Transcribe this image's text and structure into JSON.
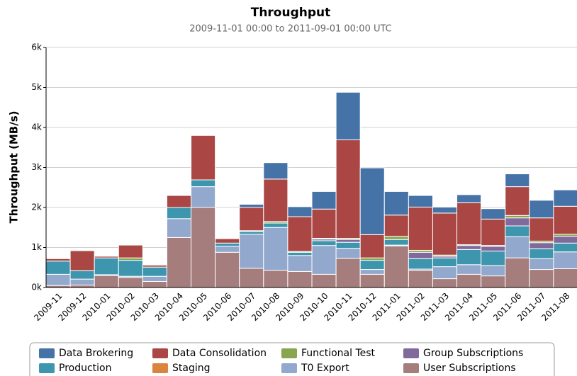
{
  "chart_data": {
    "type": "bar",
    "stacked": true,
    "title": "Throughput",
    "subtitle": "2009-11-01 00:00 to 2011-09-01 00:00 UTC",
    "y_label": "Throughput (MB/s)",
    "categories": [
      "2009-11",
      "2009-12",
      "2010-01",
      "2010-02",
      "2010-03",
      "2010-04",
      "2010-05",
      "2010-06",
      "2010-07",
      "2010-08",
      "2010-09",
      "2010-10",
      "2010-11",
      "2010-12",
      "2011-01",
      "2011-02",
      "2011-03",
      "2011-04",
      "2011-05",
      "2011-06",
      "2011-07",
      "2011-08"
    ],
    "series": [
      {
        "name": "Data Brokering",
        "color": "#4572a7",
        "values": [
          0,
          0,
          0,
          0,
          0,
          0,
          0,
          0,
          80,
          410,
          250,
          440,
          1190,
          1670,
          590,
          290,
          150,
          200,
          260,
          320,
          440,
          410
        ]
      },
      {
        "name": "Data Consolidation",
        "color": "#aa4643",
        "values": [
          60,
          500,
          40,
          320,
          50,
          300,
          1110,
          110,
          580,
          1060,
          870,
          730,
          2460,
          580,
          530,
          1080,
          1050,
          1050,
          660,
          720,
          580,
          700
        ]
      },
      {
        "name": "Functional Test",
        "color": "#89a54e",
        "values": [
          0,
          0,
          0,
          60,
          0,
          0,
          0,
          0,
          20,
          40,
          20,
          20,
          30,
          60,
          80,
          50,
          30,
          20,
          20,
          60,
          40,
          50
        ]
      },
      {
        "name": "Group Subscriptions",
        "color": "#80699b",
        "values": [
          0,
          0,
          0,
          0,
          0,
          0,
          0,
          0,
          0,
          0,
          0,
          40,
          70,
          0,
          0,
          160,
          40,
          100,
          120,
          200,
          150,
          170
        ]
      },
      {
        "name": "Production",
        "color": "#3d96ae",
        "values": [
          330,
          210,
          420,
          400,
          230,
          280,
          170,
          80,
          70,
          110,
          80,
          120,
          150,
          230,
          140,
          260,
          220,
          380,
          360,
          270,
          250,
          220
        ]
      },
      {
        "name": "Staging",
        "color": "#db843d",
        "values": [
          0,
          0,
          0,
          0,
          0,
          0,
          0,
          0,
          0,
          0,
          0,
          0,
          0,
          0,
          0,
          0,
          0,
          0,
          0,
          0,
          0,
          0
        ]
      },
      {
        "name": "T0 Export",
        "color": "#92a8cd",
        "values": [
          280,
          150,
          20,
          30,
          130,
          470,
          520,
          150,
          850,
          1070,
          400,
          720,
          250,
          120,
          20,
          30,
          300,
          240,
          260,
          530,
          270,
          420
        ]
      },
      {
        "name": "User Subscriptions",
        "color": "#a47d7c",
        "values": [
          50,
          60,
          300,
          250,
          150,
          1250,
          2000,
          880,
          480,
          430,
          400,
          330,
          730,
          330,
          1040,
          430,
          220,
          330,
          290,
          740,
          450,
          470
        ]
      }
    ],
    "ylim": [
      0,
      6000
    ],
    "yticks": [
      {
        "value": 0,
        "label": "0k"
      },
      {
        "value": 1000,
        "label": "1k"
      },
      {
        "value": 2000,
        "label": "2k"
      },
      {
        "value": 3000,
        "label": "3k"
      },
      {
        "value": 4000,
        "label": "4k"
      },
      {
        "value": 5000,
        "label": "5k"
      },
      {
        "value": 6000,
        "label": "6k"
      }
    ],
    "grid": true,
    "legend": "bottom"
  }
}
